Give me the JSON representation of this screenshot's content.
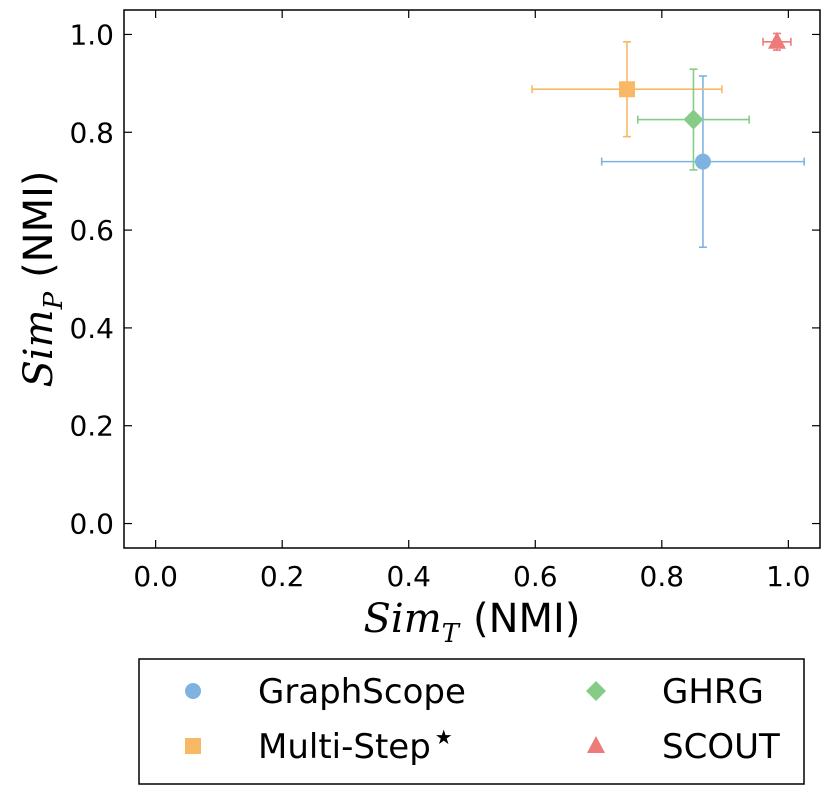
{
  "chart_data": {
    "type": "scatter",
    "title": "",
    "xlabel": {
      "var": "Sim",
      "sub": "T",
      "unit": "(NMI)"
    },
    "ylabel": {
      "var": "Sim",
      "sub": "P",
      "unit": "(NMI)"
    },
    "xlim": [
      -0.05,
      1.05
    ],
    "ylim": [
      -0.05,
      1.05
    ],
    "xticks": [
      0.0,
      0.2,
      0.4,
      0.6,
      0.8,
      1.0
    ],
    "yticks": [
      0.0,
      0.2,
      0.4,
      0.6,
      0.8,
      1.0
    ],
    "xtick_labels": [
      "0.0",
      "0.2",
      "0.4",
      "0.6",
      "0.8",
      "1.0"
    ],
    "ytick_labels": [
      "0.0",
      "0.2",
      "0.4",
      "0.6",
      "0.8",
      "1.0"
    ],
    "grid": false,
    "legend_position": "below",
    "series": [
      {
        "name": "GraphScope",
        "marker": "circle",
        "color": "#7fb2e0",
        "x": 0.865,
        "y": 0.74,
        "xerr": 0.16,
        "yerr": 0.175
      },
      {
        "name": "Multi-Step",
        "name_suffix": "★",
        "marker": "square",
        "color": "#f9b866",
        "x": 0.745,
        "y": 0.888,
        "xerr": 0.15,
        "yerr": 0.097
      },
      {
        "name": "GHRG",
        "marker": "diamond",
        "color": "#86cc86",
        "x": 0.85,
        "y": 0.826,
        "xerr": 0.088,
        "yerr": 0.103
      },
      {
        "name": "SCOUT",
        "marker": "triangle",
        "color": "#ee7a7a",
        "x": 0.982,
        "y": 0.985,
        "xerr": 0.022,
        "yerr": 0.017
      }
    ]
  }
}
